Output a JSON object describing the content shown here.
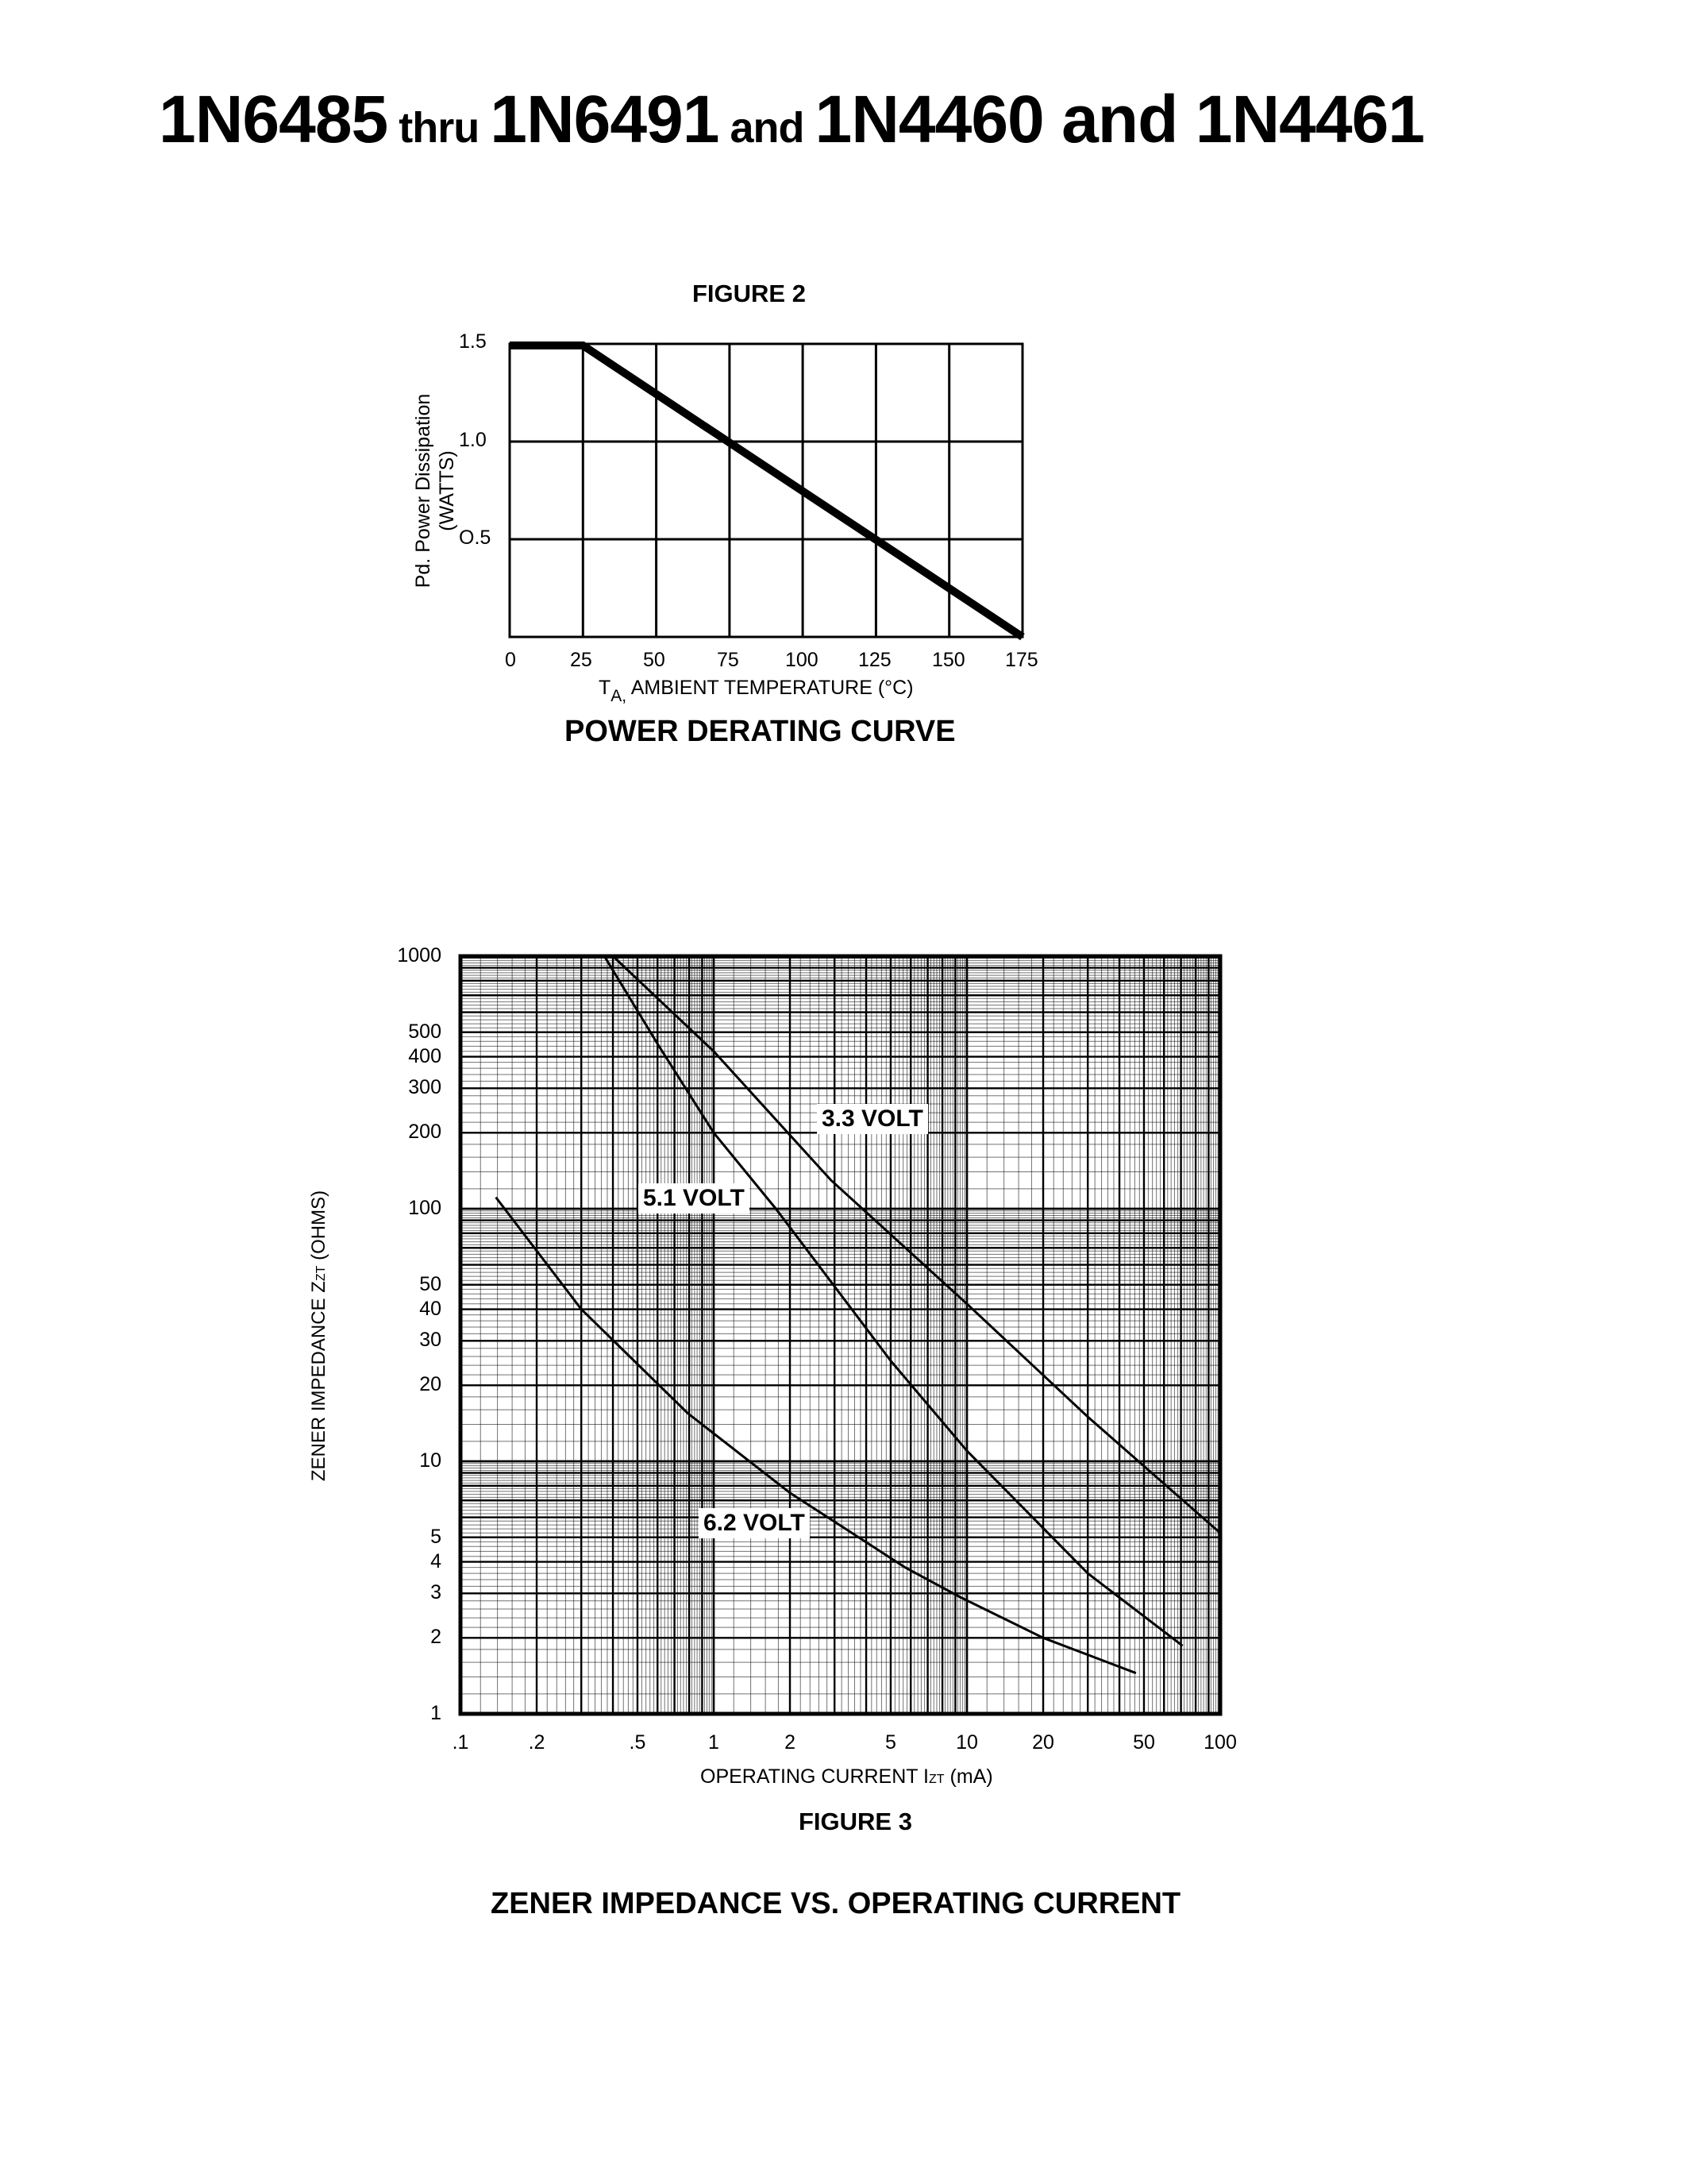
{
  "header": {
    "parts": [
      {
        "text": "1N6485",
        "size": "large"
      },
      {
        "text": " thru ",
        "size": "small"
      },
      {
        "text": "1N6491",
        "size": "large"
      },
      {
        "text": " and ",
        "size": "small"
      },
      {
        "text": "1N4460 and 1N4461",
        "size": "large"
      }
    ]
  },
  "figure2": {
    "caption": "FIGURE 2",
    "title": "POWER DERATING CURVE",
    "ylabel_line1": "Pd. Power Dissipation",
    "ylabel_line2": "(WATTS)",
    "xlabel_prefix": "T",
    "xlabel_sub": "A,",
    "xlabel_rest": " AMBIENT TEMPERATURE (°C)",
    "yticks": [
      "1.5",
      "1.0",
      "O.5"
    ],
    "xticks": [
      "0",
      "25",
      "50",
      "75",
      "100",
      "125",
      "150",
      "175"
    ]
  },
  "figure3": {
    "caption": "FIGURE 3",
    "title": "ZENER IMPEDANCE VS. OPERATING CURRENT",
    "ylabel_main": "ZENER IMPEDANCE Z",
    "ylabel_sub": "ZT",
    "ylabel_rest": " (OHMS)",
    "xlabel_main": "OPERATING CURRENT I",
    "xlabel_sub": "ZT",
    "xlabel_rest": " (mA)",
    "yticks": [
      "1000",
      "500",
      "400",
      "300",
      "200",
      "100",
      "50",
      "40",
      "30",
      "20",
      "10",
      "5",
      "4",
      "3",
      "2",
      "1"
    ],
    "xticks": [
      ".1",
      ".2",
      ".5",
      "1",
      "2",
      "5",
      "10",
      "20",
      "50",
      "100"
    ],
    "series_labels": [
      "3.3 VOLT",
      "5.1 VOLT",
      "6.2 VOLT"
    ]
  },
  "chart_data": [
    {
      "type": "line",
      "title": "POWER DERATING CURVE",
      "caption": "FIGURE 2",
      "xlabel": "TA, AMBIENT TEMPERATURE (°C)",
      "ylabel": "Pd. Power Dissipation (WATTS)",
      "xlim": [
        0,
        175
      ],
      "ylim": [
        0,
        1.5
      ],
      "xticks": [
        0,
        25,
        50,
        75,
        100,
        125,
        150,
        175
      ],
      "yticks": [
        0.5,
        1.0,
        1.5
      ],
      "grid": true,
      "series": [
        {
          "name": "Power Derating",
          "x": [
            0,
            25,
            75,
            125,
            175
          ],
          "y": [
            1.5,
            1.5,
            1.0,
            0.5,
            0.0
          ]
        }
      ]
    },
    {
      "type": "line",
      "title": "ZENER IMPEDANCE VS. OPERATING CURRENT",
      "caption": "FIGURE 3",
      "xlabel": "OPERATING CURRENT IZT (mA)",
      "ylabel": "ZENER IMPEDANCE ZZT (OHMS)",
      "xscale": "log",
      "yscale": "log",
      "xlim": [
        0.1,
        100
      ],
      "ylim": [
        1,
        1000
      ],
      "xticks": [
        0.1,
        0.2,
        0.5,
        1,
        2,
        5,
        10,
        20,
        50,
        100
      ],
      "yticks": [
        1,
        2,
        3,
        4,
        5,
        10,
        20,
        30,
        40,
        50,
        100,
        200,
        300,
        400,
        500,
        1000
      ],
      "grid": true,
      "series": [
        {
          "name": "3.3 VOLT",
          "x": [
            0.4,
            1.0,
            2.9,
            10,
            30,
            100
          ],
          "y": [
            1000,
            420,
            130,
            42,
            15,
            5.2
          ]
        },
        {
          "name": "5.1 VOLT",
          "x": [
            0.37,
            0.6,
            1.0,
            1.76,
            5,
            10,
            30,
            71
          ],
          "y": [
            1000,
            450,
            200,
            100,
            25,
            11,
            3.6,
            1.86
          ]
        },
        {
          "name": "6.2 VOLT",
          "x": [
            0.138,
            0.3,
            0.79,
            2.0,
            5.7,
            9.4,
            20,
            46.5
          ],
          "y": [
            111,
            40,
            15.5,
            7.5,
            3.8,
            2.9,
            2.0,
            1.45
          ]
        }
      ]
    }
  ]
}
